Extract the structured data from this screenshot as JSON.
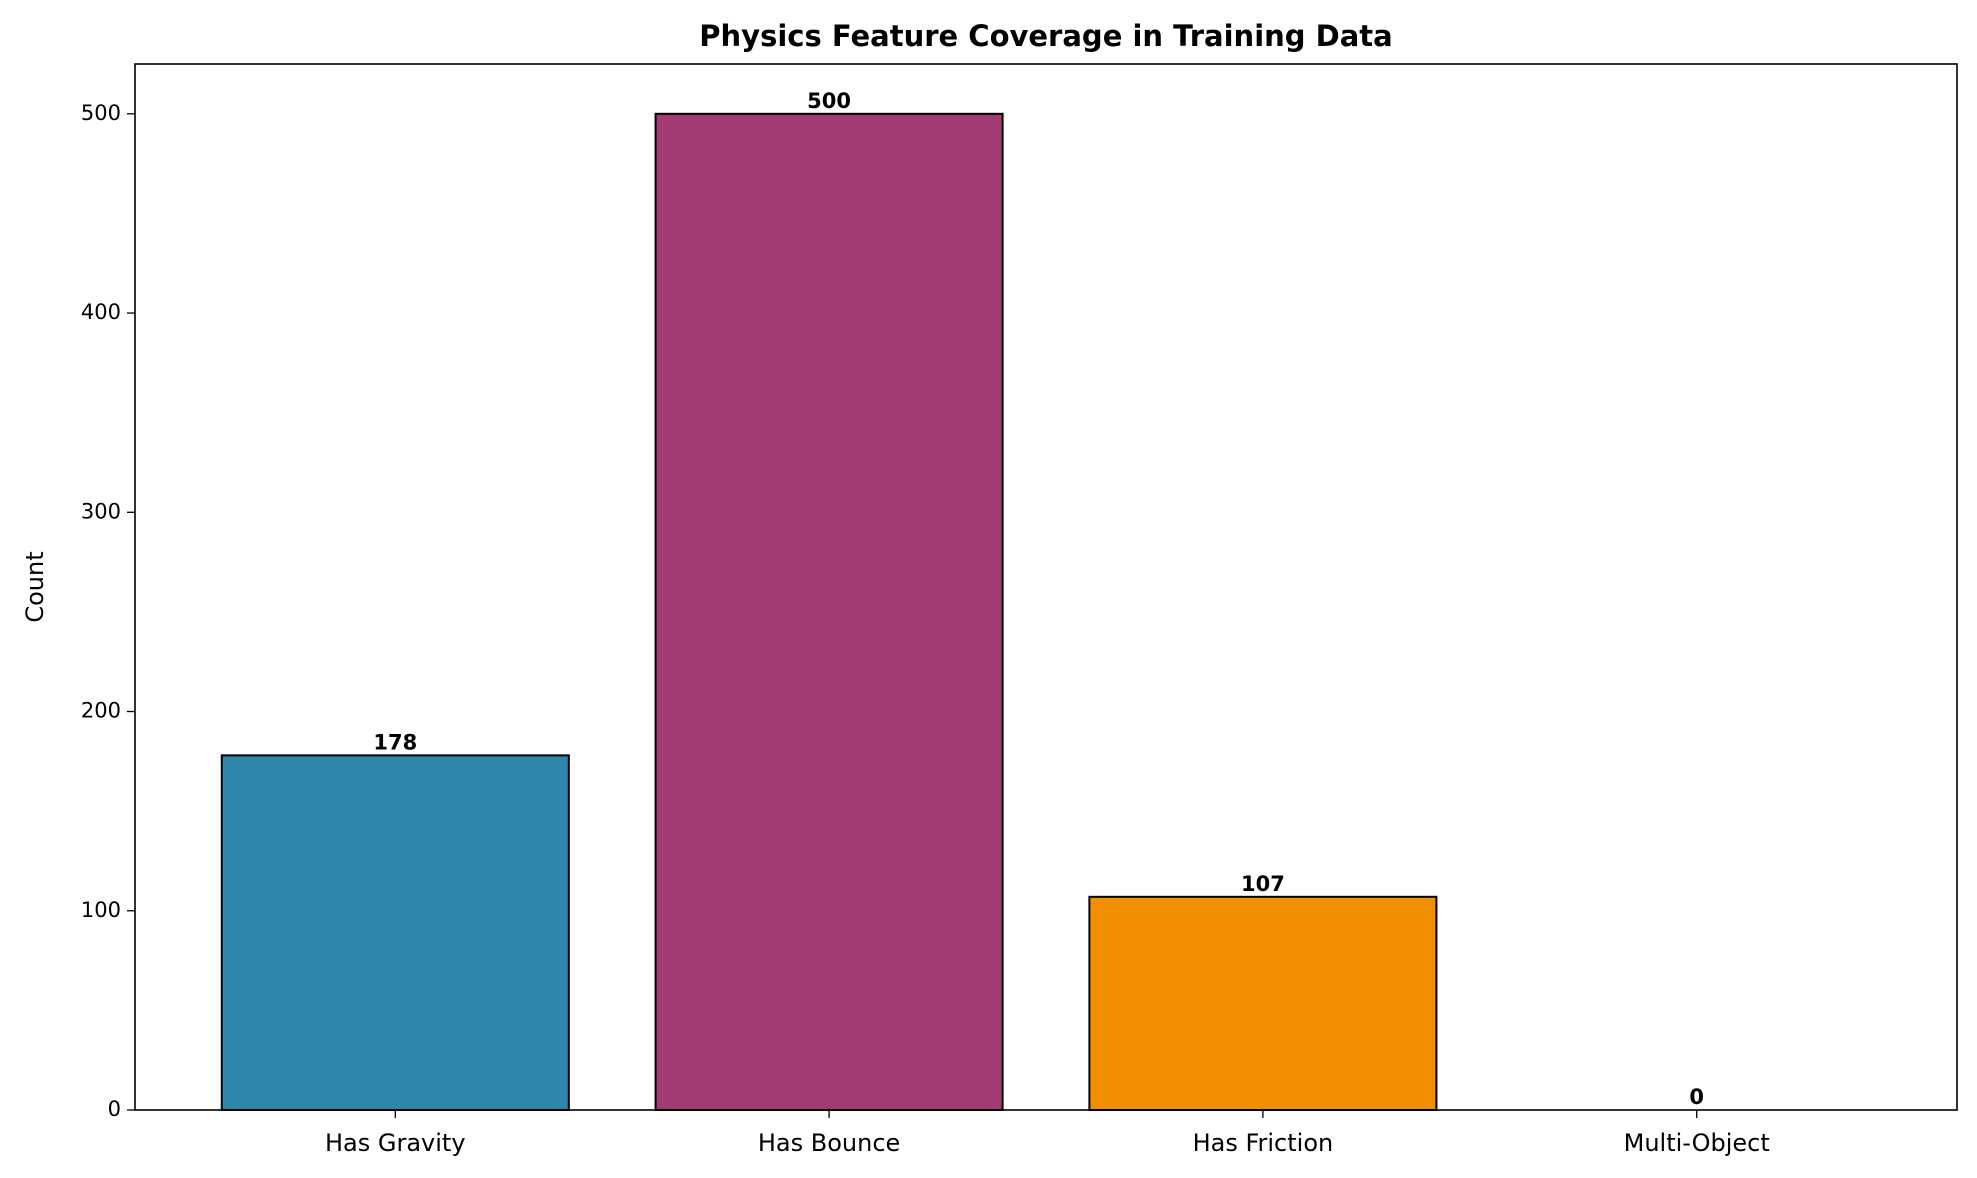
{
  "chart_data": {
    "type": "bar",
    "title": "Physics Feature Coverage in Training Data",
    "ylabel": "Count",
    "categories": [
      "Has Gravity",
      "Has Bounce",
      "Has Friction",
      "Multi-Object"
    ],
    "values": [
      178,
      500,
      107,
      0
    ],
    "colors": [
      "#2e86ab",
      "#a23b72",
      "#f18f01",
      "#c73e1d"
    ],
    "ylim": [
      0,
      525
    ],
    "yticks": [
      0,
      100,
      200,
      300,
      400,
      500
    ]
  }
}
